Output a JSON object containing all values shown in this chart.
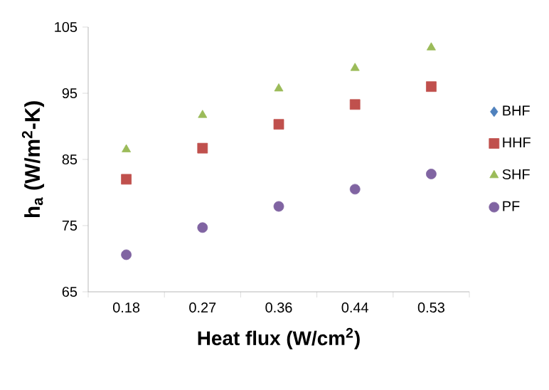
{
  "chart_data": {
    "type": "scatter",
    "xlabel": "Heat flux (W/cm$^{2}$)",
    "ylabel": "h$_{a}$ (W/m$^{2}$-K)",
    "categories": [
      "0.18",
      "0.27",
      "0.36",
      "0.44",
      "0.53"
    ],
    "series": [
      {
        "name": "BHF",
        "color": "#4f81bd",
        "marker": "diamond",
        "values": [
          null,
          null,
          null,
          null,
          null
        ]
      },
      {
        "name": "HHF",
        "color": "#c0504d",
        "marker": "square",
        "values": [
          82.0,
          86.7,
          90.3,
          93.3,
          96.0
        ]
      },
      {
        "name": "SHF",
        "color": "#9bbb59",
        "marker": "triangle",
        "values": [
          86.5,
          91.7,
          95.7,
          98.8,
          101.9
        ]
      },
      {
        "name": "PF",
        "color": "#8064a2",
        "marker": "circle",
        "values": [
          70.6,
          74.7,
          77.9,
          80.5,
          82.8
        ]
      }
    ],
    "ylim": [
      65,
      105
    ],
    "yticks": [
      65,
      75,
      85,
      95,
      105
    ],
    "grid": false,
    "legend": "right"
  }
}
